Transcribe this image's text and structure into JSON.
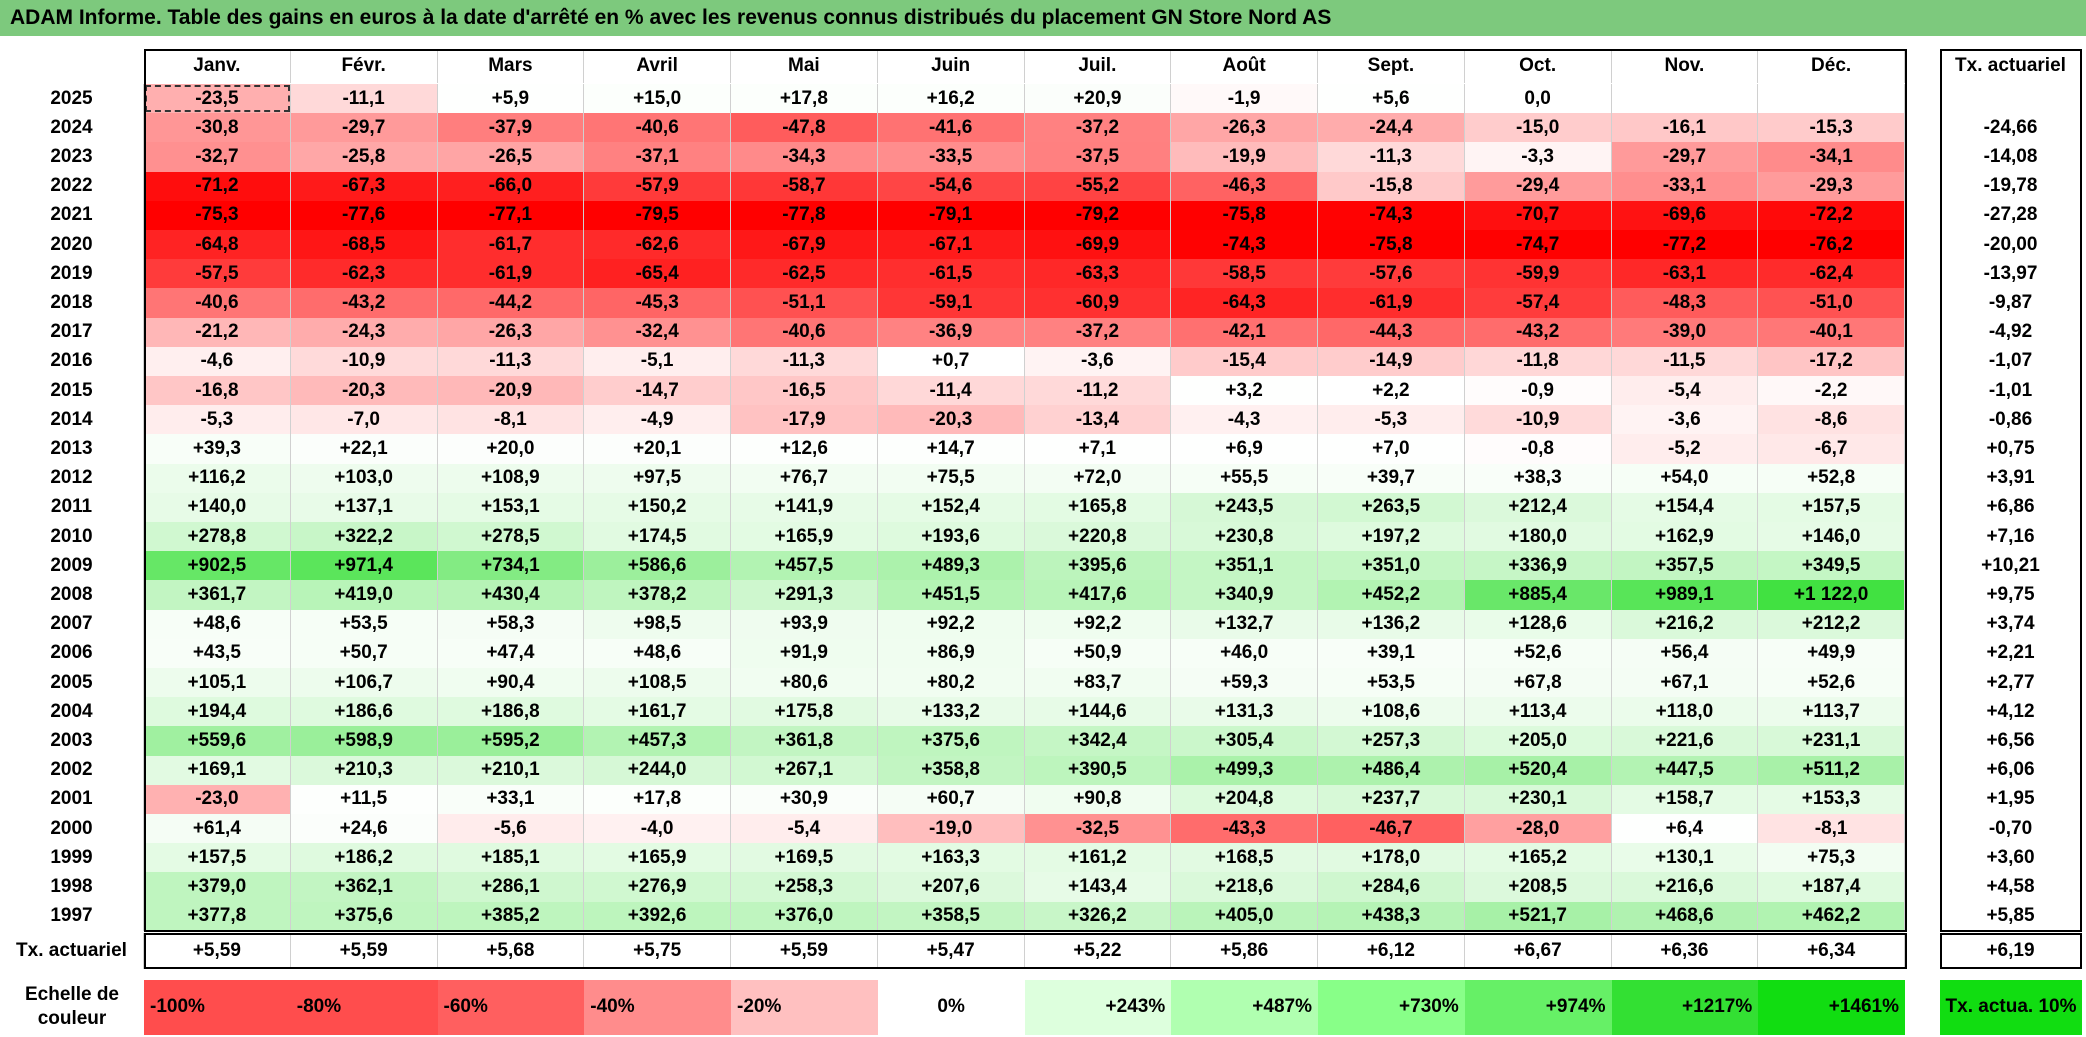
{
  "header": {
    "title": "ADAM Informe. Table des gains en euros à la date d'arrêté en % avec les revenus connus distribués du placement GN Store Nord AS"
  },
  "table": {
    "columns": [
      "Janv.",
      "Févr.",
      "Mars",
      "Avril",
      "Mai",
      "Juin",
      "Juil.",
      "Août",
      "Sept.",
      "Oct.",
      "Nov.",
      "Déc."
    ],
    "tx_header": "Tx. actuariel",
    "rows": [
      {
        "year": "2025",
        "values": [
          "-23,5",
          "-11,1",
          "+5,9",
          "+15,0",
          "+17,8",
          "+16,2",
          "+20,9",
          "-1,9",
          "+5,6",
          "0,0",
          null,
          null
        ],
        "tx": null
      },
      {
        "year": "2024",
        "values": [
          "-30,8",
          "-29,7",
          "-37,9",
          "-40,6",
          "-47,8",
          "-41,6",
          "-37,2",
          "-26,3",
          "-24,4",
          "-15,0",
          "-16,1",
          "-15,3"
        ],
        "tx": "-24,66"
      },
      {
        "year": "2023",
        "values": [
          "-32,7",
          "-25,8",
          "-26,5",
          "-37,1",
          "-34,3",
          "-33,5",
          "-37,5",
          "-19,9",
          "-11,3",
          "-3,3",
          "-29,7",
          "-34,1"
        ],
        "tx": "-14,08"
      },
      {
        "year": "2022",
        "values": [
          "-71,2",
          "-67,3",
          "-66,0",
          "-57,9",
          "-58,7",
          "-54,6",
          "-55,2",
          "-46,3",
          "-15,8",
          "-29,4",
          "-33,1",
          "-29,3"
        ],
        "tx": "-19,78"
      },
      {
        "year": "2021",
        "values": [
          "-75,3",
          "-77,6",
          "-77,1",
          "-79,5",
          "-77,8",
          "-79,1",
          "-79,2",
          "-75,8",
          "-74,3",
          "-70,7",
          "-69,6",
          "-72,2"
        ],
        "tx": "-27,28"
      },
      {
        "year": "2020",
        "values": [
          "-64,8",
          "-68,5",
          "-61,7",
          "-62,6",
          "-67,9",
          "-67,1",
          "-69,9",
          "-74,3",
          "-75,8",
          "-74,7",
          "-77,2",
          "-76,2"
        ],
        "tx": "-20,00"
      },
      {
        "year": "2019",
        "values": [
          "-57,5",
          "-62,3",
          "-61,9",
          "-65,4",
          "-62,5",
          "-61,5",
          "-63,3",
          "-58,5",
          "-57,6",
          "-59,9",
          "-63,1",
          "-62,4"
        ],
        "tx": "-13,97"
      },
      {
        "year": "2018",
        "values": [
          "-40,6",
          "-43,2",
          "-44,2",
          "-45,3",
          "-51,1",
          "-59,1",
          "-60,9",
          "-64,3",
          "-61,9",
          "-57,4",
          "-48,3",
          "-51,0"
        ],
        "tx": "-9,87"
      },
      {
        "year": "2017",
        "values": [
          "-21,2",
          "-24,3",
          "-26,3",
          "-32,4",
          "-40,6",
          "-36,9",
          "-37,2",
          "-42,1",
          "-44,3",
          "-43,2",
          "-39,0",
          "-40,1"
        ],
        "tx": "-4,92"
      },
      {
        "year": "2016",
        "values": [
          "-4,6",
          "-10,9",
          "-11,3",
          "-5,1",
          "-11,3",
          "+0,7",
          "-3,6",
          "-15,4",
          "-14,9",
          "-11,8",
          "-11,5",
          "-17,2"
        ],
        "tx": "-1,07"
      },
      {
        "year": "2015",
        "values": [
          "-16,8",
          "-20,3",
          "-20,9",
          "-14,7",
          "-16,5",
          "-11,4",
          "-11,2",
          "+3,2",
          "+2,2",
          "-0,9",
          "-5,4",
          "-2,2"
        ],
        "tx": "-1,01"
      },
      {
        "year": "2014",
        "values": [
          "-5,3",
          "-7,0",
          "-8,1",
          "-4,9",
          "-17,9",
          "-20,3",
          "-13,4",
          "-4,3",
          "-5,3",
          "-10,9",
          "-3,6",
          "-8,6"
        ],
        "tx": "-0,86"
      },
      {
        "year": "2013",
        "values": [
          "+39,3",
          "+22,1",
          "+20,0",
          "+20,1",
          "+12,6",
          "+14,7",
          "+7,1",
          "+6,9",
          "+7,0",
          "-0,8",
          "-5,2",
          "-6,7"
        ],
        "tx": "+0,75"
      },
      {
        "year": "2012",
        "values": [
          "+116,2",
          "+103,0",
          "+108,9",
          "+97,5",
          "+76,7",
          "+75,5",
          "+72,0",
          "+55,5",
          "+39,7",
          "+38,3",
          "+54,0",
          "+52,8"
        ],
        "tx": "+3,91"
      },
      {
        "year": "2011",
        "values": [
          "+140,0",
          "+137,1",
          "+153,1",
          "+150,2",
          "+141,9",
          "+152,4",
          "+165,8",
          "+243,5",
          "+263,5",
          "+212,4",
          "+154,4",
          "+157,5"
        ],
        "tx": "+6,86"
      },
      {
        "year": "2010",
        "values": [
          "+278,8",
          "+322,2",
          "+278,5",
          "+174,5",
          "+165,9",
          "+193,6",
          "+220,8",
          "+230,8",
          "+197,2",
          "+180,0",
          "+162,9",
          "+146,0"
        ],
        "tx": "+7,16"
      },
      {
        "year": "2009",
        "values": [
          "+902,5",
          "+971,4",
          "+734,1",
          "+586,6",
          "+457,5",
          "+489,3",
          "+395,6",
          "+351,1",
          "+351,0",
          "+336,9",
          "+357,5",
          "+349,5"
        ],
        "tx": "+10,21"
      },
      {
        "year": "2008",
        "values": [
          "+361,7",
          "+419,0",
          "+430,4",
          "+378,2",
          "+291,3",
          "+451,5",
          "+417,6",
          "+340,9",
          "+452,2",
          "+885,4",
          "+989,1",
          "+1 122,0"
        ],
        "tx": "+9,75"
      },
      {
        "year": "2007",
        "values": [
          "+48,6",
          "+53,5",
          "+58,3",
          "+98,5",
          "+93,9",
          "+92,2",
          "+92,2",
          "+132,7",
          "+136,2",
          "+128,6",
          "+216,2",
          "+212,2"
        ],
        "tx": "+3,74"
      },
      {
        "year": "2006",
        "values": [
          "+43,5",
          "+50,7",
          "+47,4",
          "+48,6",
          "+91,9",
          "+86,9",
          "+50,9",
          "+46,0",
          "+39,1",
          "+52,6",
          "+56,4",
          "+49,9"
        ],
        "tx": "+2,21"
      },
      {
        "year": "2005",
        "values": [
          "+105,1",
          "+106,7",
          "+90,4",
          "+108,5",
          "+80,6",
          "+80,2",
          "+83,7",
          "+59,3",
          "+53,5",
          "+67,8",
          "+67,1",
          "+52,6"
        ],
        "tx": "+2,77"
      },
      {
        "year": "2004",
        "values": [
          "+194,4",
          "+186,6",
          "+186,8",
          "+161,7",
          "+175,8",
          "+133,2",
          "+144,6",
          "+131,3",
          "+108,6",
          "+113,4",
          "+118,0",
          "+113,7"
        ],
        "tx": "+4,12"
      },
      {
        "year": "2003",
        "values": [
          "+559,6",
          "+598,9",
          "+595,2",
          "+457,3",
          "+361,8",
          "+375,6",
          "+342,4",
          "+305,4",
          "+257,3",
          "+205,0",
          "+221,6",
          "+231,1"
        ],
        "tx": "+6,56"
      },
      {
        "year": "2002",
        "values": [
          "+169,1",
          "+210,3",
          "+210,1",
          "+244,0",
          "+267,1",
          "+358,8",
          "+390,5",
          "+499,3",
          "+486,4",
          "+520,4",
          "+447,5",
          "+511,2"
        ],
        "tx": "+6,06"
      },
      {
        "year": "2001",
        "values": [
          "-23,0",
          "+11,5",
          "+33,1",
          "+17,8",
          "+30,9",
          "+60,7",
          "+90,8",
          "+204,8",
          "+237,7",
          "+230,1",
          "+158,7",
          "+153,3"
        ],
        "tx": "+1,95"
      },
      {
        "year": "2000",
        "values": [
          "+61,4",
          "+24,6",
          "-5,6",
          "-4,0",
          "-5,4",
          "-19,0",
          "-32,5",
          "-43,3",
          "-46,7",
          "-28,0",
          "+6,4",
          "-8,1"
        ],
        "tx": "-0,70"
      },
      {
        "year": "1999",
        "values": [
          "+157,5",
          "+186,2",
          "+185,1",
          "+165,9",
          "+169,5",
          "+163,3",
          "+161,2",
          "+168,5",
          "+178,0",
          "+165,2",
          "+130,1",
          "+75,3"
        ],
        "tx": "+3,60"
      },
      {
        "year": "1998",
        "values": [
          "+379,0",
          "+362,1",
          "+286,1",
          "+276,9",
          "+258,3",
          "+207,6",
          "+143,4",
          "+218,6",
          "+284,6",
          "+208,5",
          "+216,6",
          "+187,4"
        ],
        "tx": "+4,58"
      },
      {
        "year": "1997",
        "values": [
          "+377,8",
          "+375,6",
          "+385,2",
          "+392,6",
          "+376,0",
          "+358,5",
          "+326,2",
          "+405,0",
          "+438,3",
          "+521,7",
          "+468,6",
          "+462,2"
        ],
        "tx": "+5,85"
      }
    ],
    "footer": {
      "label": "Tx. actuariel",
      "values": [
        "+5,59",
        "+5,59",
        "+5,68",
        "+5,75",
        "+5,59",
        "+5,47",
        "+5,22",
        "+5,86",
        "+6,12",
        "+6,67",
        "+6,36",
        "+6,34"
      ],
      "tx": "+6,19"
    }
  },
  "legend": {
    "label": "Echelle de couleur",
    "steps": [
      "-100%",
      "-80%",
      "-60%",
      "-40%",
      "-20%",
      "0%",
      "+243%",
      "+487%",
      "+730%",
      "+974%",
      "+1217%",
      "+1461%"
    ],
    "tx": "Tx. actua. 10%"
  }
}
